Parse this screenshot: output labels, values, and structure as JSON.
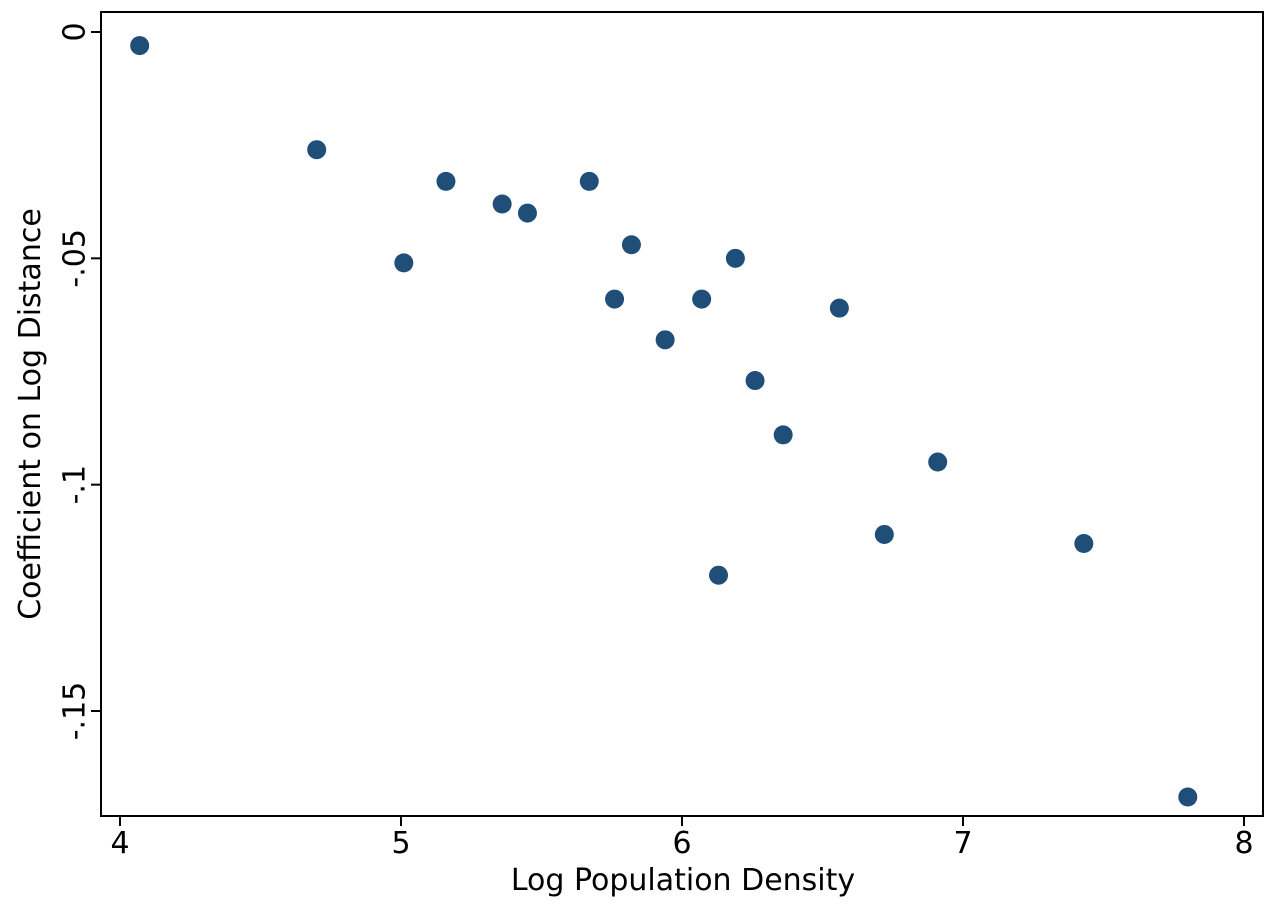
{
  "chart_data": {
    "type": "scatter",
    "title": "",
    "xlabel": "Log Population Density",
    "ylabel": "Coefficient on Log Distance",
    "xlim": [
      4.0,
      8.0
    ],
    "ylim": [
      -0.15,
      0
    ],
    "x_ticks": [
      4,
      5,
      6,
      7,
      8
    ],
    "x_tick_labels": [
      "4",
      "5",
      "6",
      "7",
      "8"
    ],
    "y_ticks": [
      0,
      -0.05,
      -0.1,
      -0.15
    ],
    "y_tick_labels": [
      "0",
      "-.05",
      "-.1",
      "-.15"
    ],
    "grid": false,
    "marker_color": "#1f4e79",
    "points": [
      {
        "x": 4.07,
        "y": -0.003
      },
      {
        "x": 4.7,
        "y": -0.026
      },
      {
        "x": 5.01,
        "y": -0.051
      },
      {
        "x": 5.16,
        "y": -0.033
      },
      {
        "x": 5.36,
        "y": -0.038
      },
      {
        "x": 5.45,
        "y": -0.04
      },
      {
        "x": 5.67,
        "y": -0.033
      },
      {
        "x": 5.76,
        "y": -0.059
      },
      {
        "x": 5.82,
        "y": -0.047
      },
      {
        "x": 5.94,
        "y": -0.068
      },
      {
        "x": 6.07,
        "y": -0.059
      },
      {
        "x": 6.13,
        "y": -0.12
      },
      {
        "x": 6.19,
        "y": -0.05
      },
      {
        "x": 6.26,
        "y": -0.077
      },
      {
        "x": 6.36,
        "y": -0.089
      },
      {
        "x": 6.56,
        "y": -0.061
      },
      {
        "x": 6.72,
        "y": -0.111
      },
      {
        "x": 6.91,
        "y": -0.095
      },
      {
        "x": 7.43,
        "y": -0.113
      },
      {
        "x": 7.8,
        "y": -0.169
      }
    ]
  }
}
